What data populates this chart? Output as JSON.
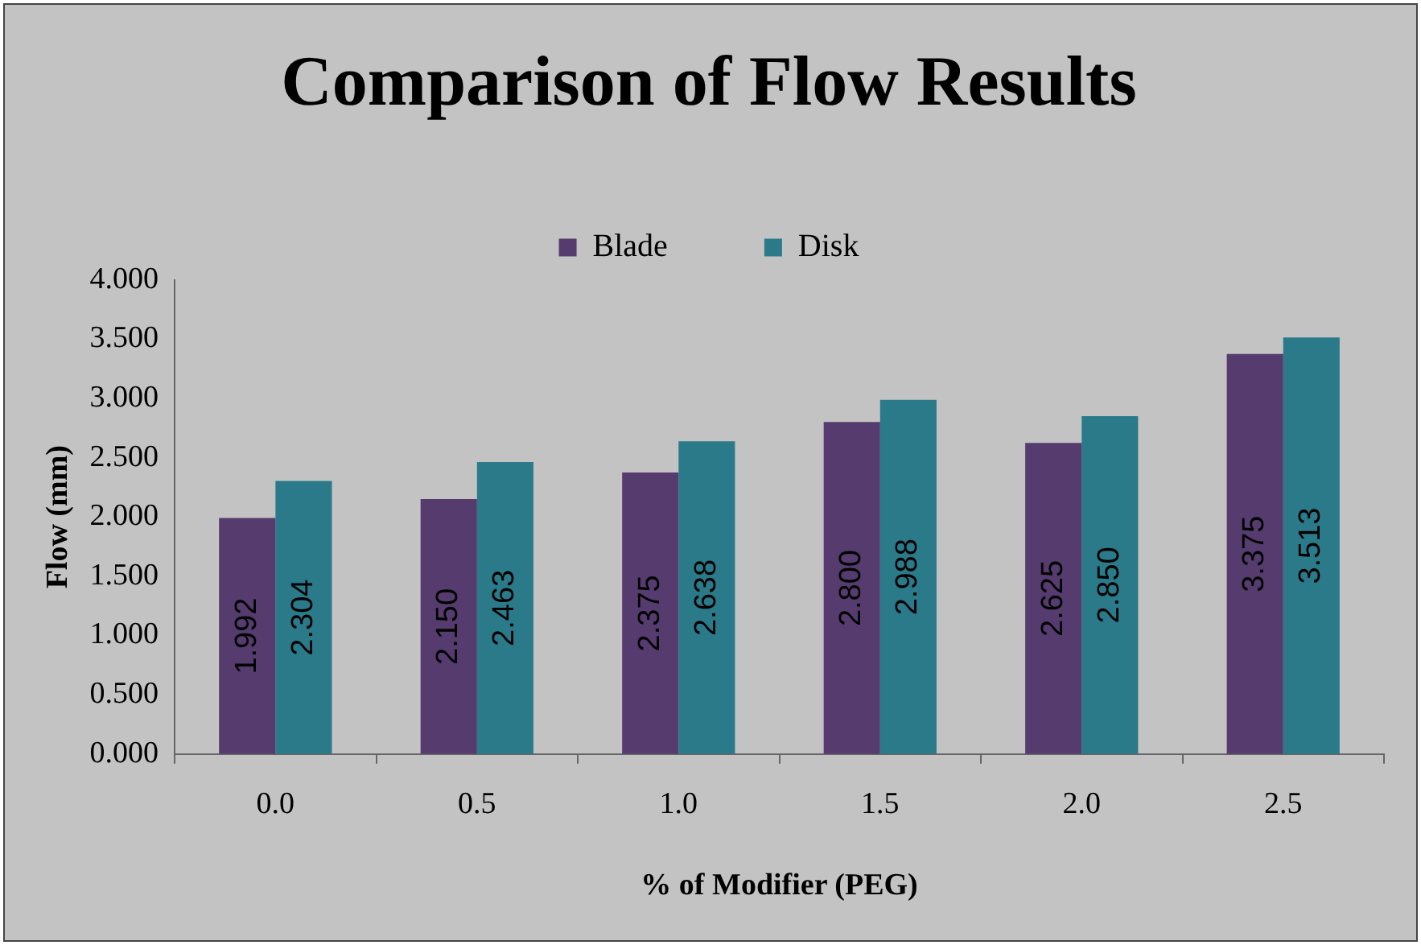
{
  "chart_data": {
    "type": "bar",
    "title": "Comparison of Flow Results",
    "xlabel": "% of Modifier (PEG)",
    "ylabel": "Flow (mm)",
    "categories": [
      "0.0",
      "0.5",
      "1.0",
      "1.5",
      "2.0",
      "2.5"
    ],
    "series": [
      {
        "name": "Blade",
        "color": "#553b6e",
        "values": [
          1.992,
          2.15,
          2.375,
          2.8,
          2.625,
          3.375
        ],
        "value_labels": [
          "1.992",
          "2.150",
          "2.375",
          "2.800",
          "2.625",
          "3.375"
        ]
      },
      {
        "name": "Disk",
        "color": "#2a7a8a",
        "values": [
          2.304,
          2.463,
          2.638,
          2.988,
          2.85,
          3.513
        ],
        "value_labels": [
          "2.304",
          "2.463",
          "2.638",
          "2.988",
          "2.850",
          "3.513"
        ]
      }
    ],
    "ylim": [
      0,
      4
    ],
    "yticks": [
      {
        "value": 0,
        "label": "0.000"
      },
      {
        "value": 0.5,
        "label": "0.500"
      },
      {
        "value": 1,
        "label": "1.000"
      },
      {
        "value": 1.5,
        "label": "1.500"
      },
      {
        "value": 2,
        "label": "2.000"
      },
      {
        "value": 2.5,
        "label": "2.500"
      },
      {
        "value": 3,
        "label": "3.000"
      },
      {
        "value": 3.5,
        "label": "3.500"
      },
      {
        "value": 4,
        "label": "4.000"
      }
    ],
    "grid": false,
    "legend": "top"
  }
}
